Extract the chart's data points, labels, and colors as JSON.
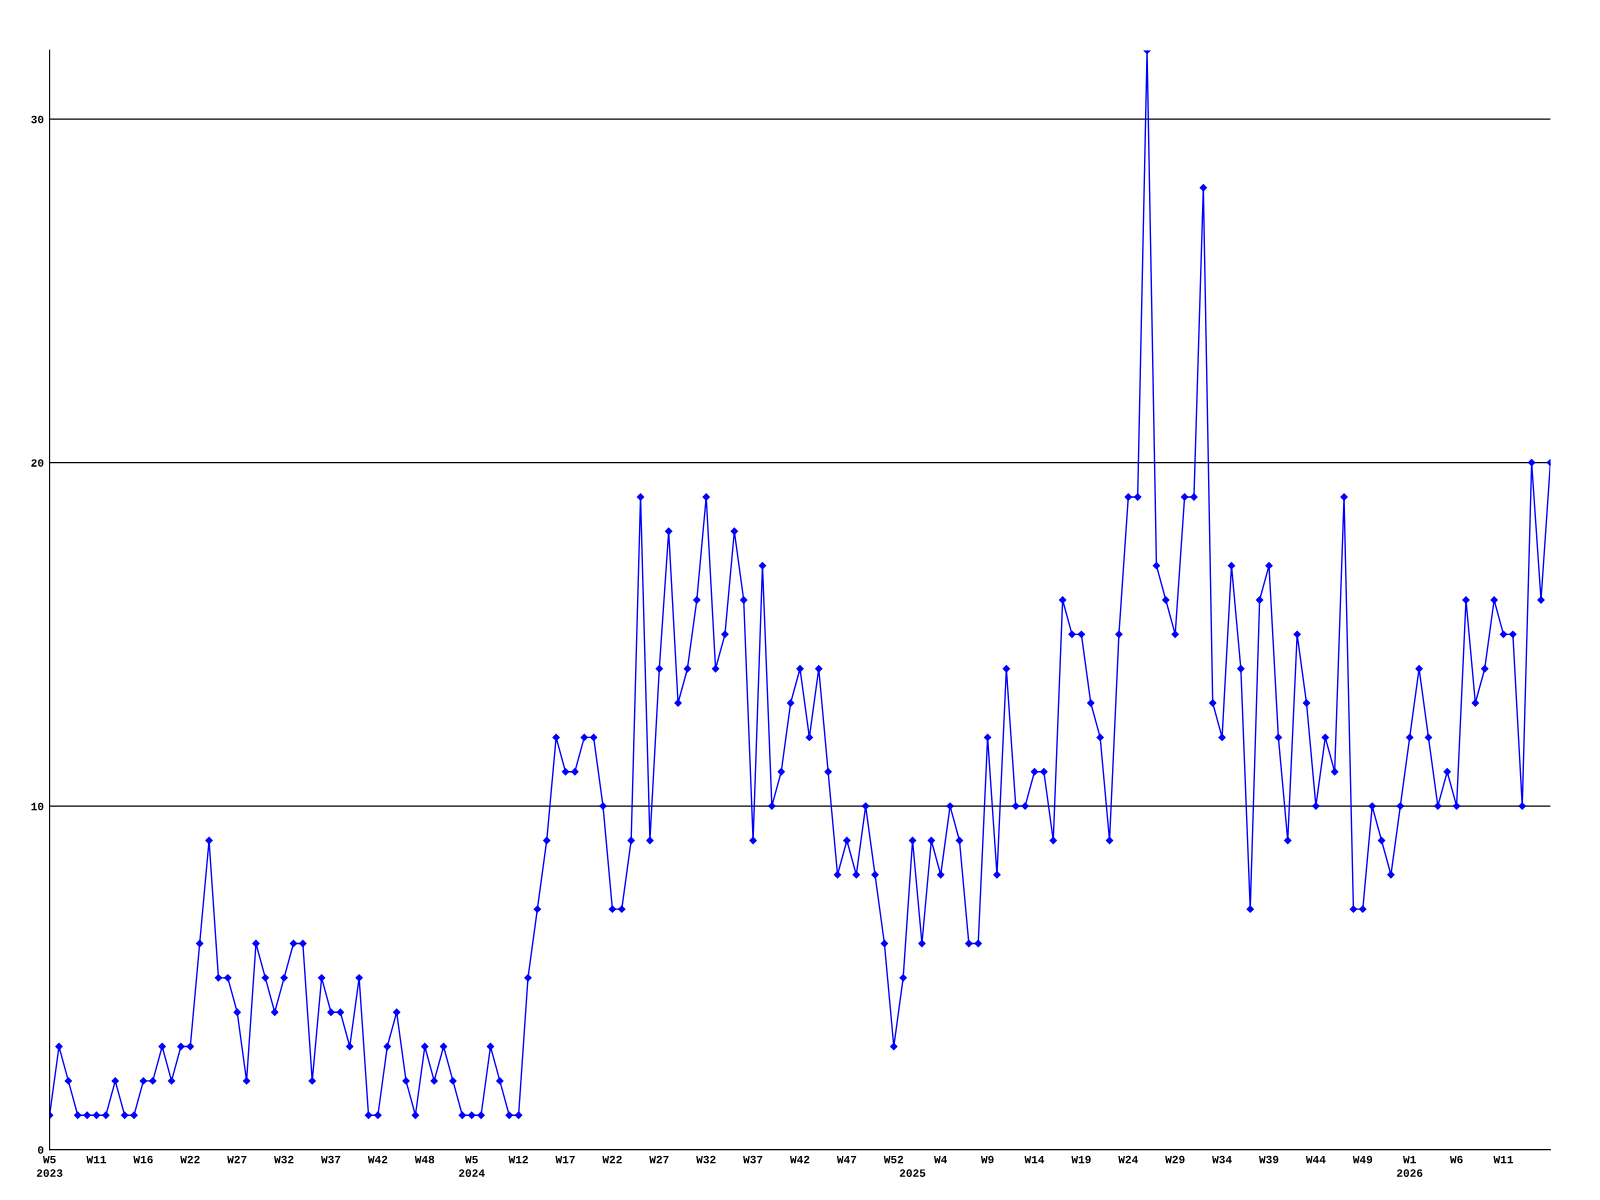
{
  "chart_data": {
    "type": "line",
    "categories": [
      "W5\n2023",
      null,
      null,
      null,
      null,
      "W11",
      null,
      null,
      null,
      null,
      "W16",
      null,
      null,
      null,
      null,
      "W22",
      null,
      null,
      null,
      null,
      "W27",
      null,
      null,
      null,
      null,
      "W32",
      null,
      null,
      null,
      null,
      "W37",
      null,
      null,
      null,
      null,
      "W42",
      null,
      null,
      null,
      null,
      "W48",
      null,
      null,
      null,
      null,
      "W5\n2024",
      null,
      null,
      null,
      null,
      "W12",
      null,
      null,
      null,
      null,
      "W17",
      null,
      null,
      null,
      null,
      "W22",
      null,
      null,
      null,
      null,
      "W27",
      null,
      null,
      null,
      null,
      "W32",
      null,
      null,
      null,
      null,
      "W37",
      null,
      null,
      null,
      null,
      "W42",
      null,
      null,
      null,
      null,
      "W47",
      null,
      null,
      null,
      null,
      "W52",
      null,
      "\n2025",
      null,
      null,
      "W4",
      null,
      null,
      null,
      null,
      "W9",
      null,
      null,
      null,
      null,
      "W14",
      null,
      null,
      null,
      null,
      "W19",
      null,
      null,
      null,
      null,
      "W24",
      null,
      null,
      null,
      null,
      "W29",
      null,
      null,
      null,
      null,
      "W34",
      null,
      null,
      null,
      null,
      "W39",
      null,
      null,
      null,
      null,
      "W44",
      null,
      null,
      null,
      null,
      "W49",
      null,
      null,
      null,
      null,
      "W1\n2026",
      null,
      null,
      null,
      null,
      "W6",
      null,
      null,
      null,
      null,
      "W11",
      null,
      null,
      null,
      null,
      null
    ],
    "series": [
      {
        "color": "#0000ff",
        "values": [
          1,
          3,
          2,
          1,
          1,
          1,
          1,
          2,
          1,
          1,
          2,
          2,
          3,
          2,
          3,
          3,
          6,
          9,
          5,
          5,
          4,
          2,
          6,
          5,
          4,
          5,
          6,
          6,
          2,
          5,
          4,
          4,
          3,
          5,
          1,
          1,
          3,
          4,
          2,
          1,
          3,
          2,
          3,
          2,
          1,
          1,
          1,
          3,
          2,
          1,
          1,
          5,
          7,
          9,
          12,
          11,
          11,
          12,
          12,
          10,
          7,
          7,
          9,
          19,
          9,
          14,
          18,
          13,
          14,
          16,
          19,
          14,
          15,
          18,
          16,
          9,
          17,
          10,
          11,
          13,
          14,
          12,
          14,
          11,
          8,
          9,
          8,
          10,
          8,
          6,
          3,
          5,
          9,
          6,
          9,
          8,
          10,
          9,
          6,
          6,
          12,
          8,
          14,
          10,
          10,
          11,
          11,
          9,
          16,
          15,
          15,
          13,
          12,
          9,
          15,
          19,
          19,
          32,
          17,
          16,
          15,
          19,
          19,
          28,
          13,
          12,
          17,
          14,
          7,
          16,
          17,
          12,
          9,
          15,
          13,
          10,
          12,
          11,
          19,
          7,
          7,
          10,
          9,
          8,
          10,
          12,
          14,
          12,
          10,
          11,
          10,
          16,
          13,
          14,
          16,
          15,
          15,
          10,
          20,
          16,
          20
        ]
      }
    ],
    "ylim": [
      0,
      32
    ],
    "yticks": [
      0,
      10,
      20,
      30
    ],
    "grid": "y",
    "marker": "diamond",
    "line_style": "solid"
  }
}
